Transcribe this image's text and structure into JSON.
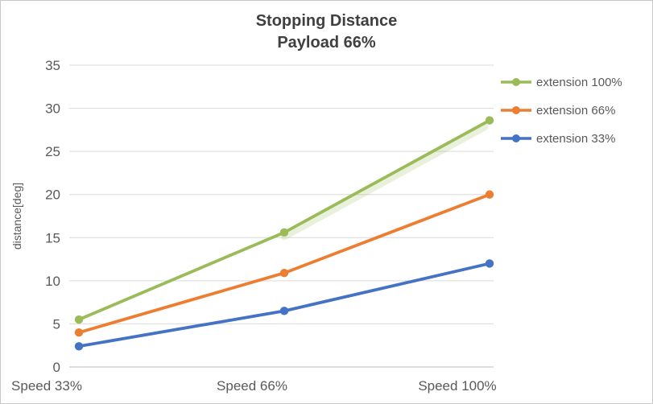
{
  "chart_data": {
    "type": "line",
    "title": "Stopping Distance",
    "subtitle": "Payload 66%",
    "ylabel": "distance[deg]",
    "xlabel": "",
    "categories": [
      "Speed 33%",
      "Speed 66%",
      "Speed 100%"
    ],
    "series": [
      {
        "name": "extension 100%",
        "color": "#9BBB59",
        "values": [
          5.5,
          15.6,
          28.6
        ],
        "glow": true
      },
      {
        "name": "extension 66%",
        "color": "#ED7D31",
        "values": [
          4.0,
          10.9,
          20.0
        ],
        "glow": false
      },
      {
        "name": "extension 33%",
        "color": "#4472C4",
        "values": [
          2.4,
          6.5,
          12.0
        ],
        "glow": false
      }
    ],
    "ylim": [
      0,
      35
    ],
    "ytick_step": 5,
    "grid": true,
    "legend_position": "right"
  },
  "colors": {
    "title_text": "#404040",
    "axis_text": "#595959",
    "gridline": "#D9D9D9",
    "axis_line": "#BFBFBF",
    "frame_border": "#C8C8C8",
    "background": "#FFFFFF"
  }
}
